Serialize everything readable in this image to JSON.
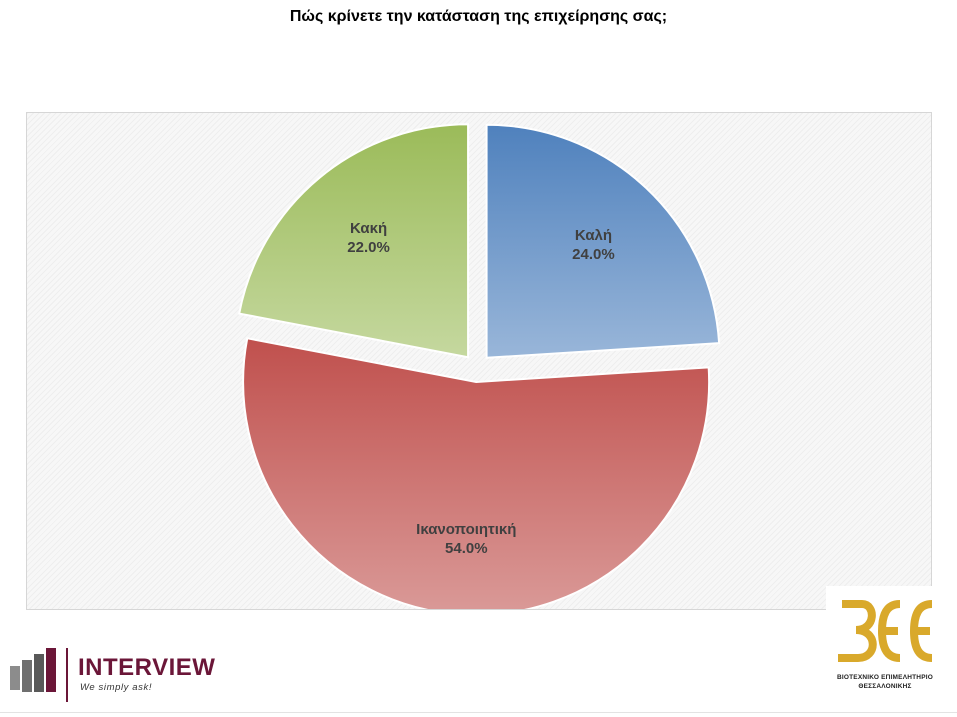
{
  "page": {
    "title": "Πώς κρίνετε την κατάσταση της επιχείρησης σας;"
  },
  "chart_data": {
    "type": "pie",
    "title": "Πώς κρίνετε την κατάσταση της επιχείρησης σας;",
    "categories": [
      "Καλή",
      "Ικανοποιητική",
      "Κακή"
    ],
    "values": [
      24.0,
      54.0,
      22.0
    ],
    "value_labels": [
      "24.0%",
      "54.0%",
      "22.0%"
    ],
    "colors": [
      "#4f81bd",
      "#c0504d",
      "#9bbb59"
    ],
    "exploded": true,
    "legend": "none",
    "start": "12 o'clock, clockwise"
  },
  "logos": {
    "interview": {
      "name": "INTERVIEW",
      "tagline": "We simply ask!",
      "color": "#6b1638"
    },
    "bee": {
      "mark": "ΒΕΕ",
      "line1": "ΒΙΟΤΕΧΝΙΚΟ ΕΠΙΜΕΛΗΤΗΡΙΟ",
      "line2": "ΘΕΣΣΑΛΟΝΙΚΗΣ",
      "color": "#d9a92b"
    }
  }
}
